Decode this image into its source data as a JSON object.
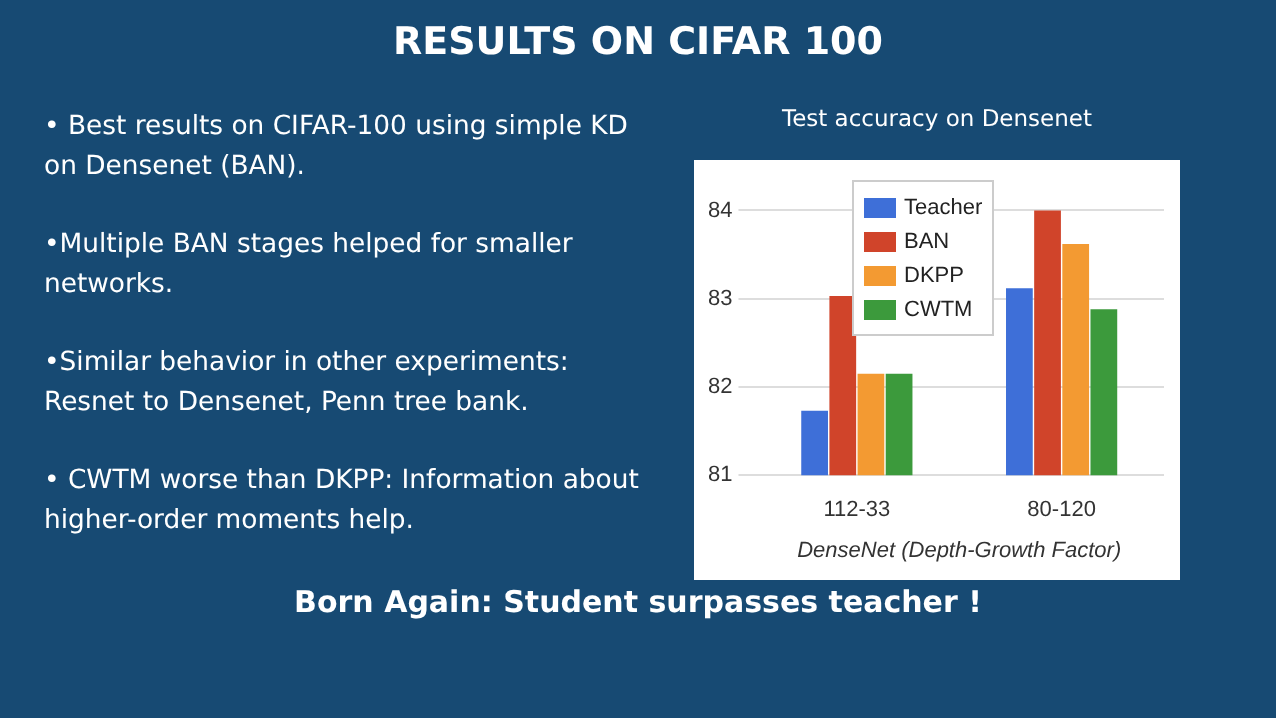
{
  "chart_data": {
    "type": "bar",
    "title": "RESULTS ON CIFAR 100",
    "subtitle": "Test accuracy on Densenet",
    "xlabel": "DenseNet (Depth-Growth Factor)",
    "categories": [
      "112-33",
      "80-120"
    ],
    "series": [
      {
        "name": "Teacher",
        "color": "#3e6fd8",
        "values": [
          81.73,
          83.12
        ]
      },
      {
        "name": "BAN",
        "color": "#d0442a",
        "values": [
          83.03,
          84.0
        ]
      },
      {
        "name": "DKPP",
        "color": "#f39a32",
        "values": [
          82.15,
          83.62
        ]
      },
      {
        "name": "CWTM",
        "color": "#3c9a3c",
        "values": [
          82.15,
          82.88
        ]
      }
    ],
    "ylim": [
      81,
      84.3
    ],
    "yticks": [
      81,
      82,
      83,
      84
    ],
    "grid": "y",
    "legend": "top",
    "annotations": [
      "• Best results on CIFAR-100 using simple KD on Densenet (BAN).",
      "•Multiple BAN stages helped for smaller networks.",
      "•Similar behavior in other experiments: Resnet to Densenet, Penn tree bank.",
      "• CWTM worse than DKPP: Information about higher-order moments help.",
      "Born Again: Student surpasses teacher !"
    ]
  }
}
